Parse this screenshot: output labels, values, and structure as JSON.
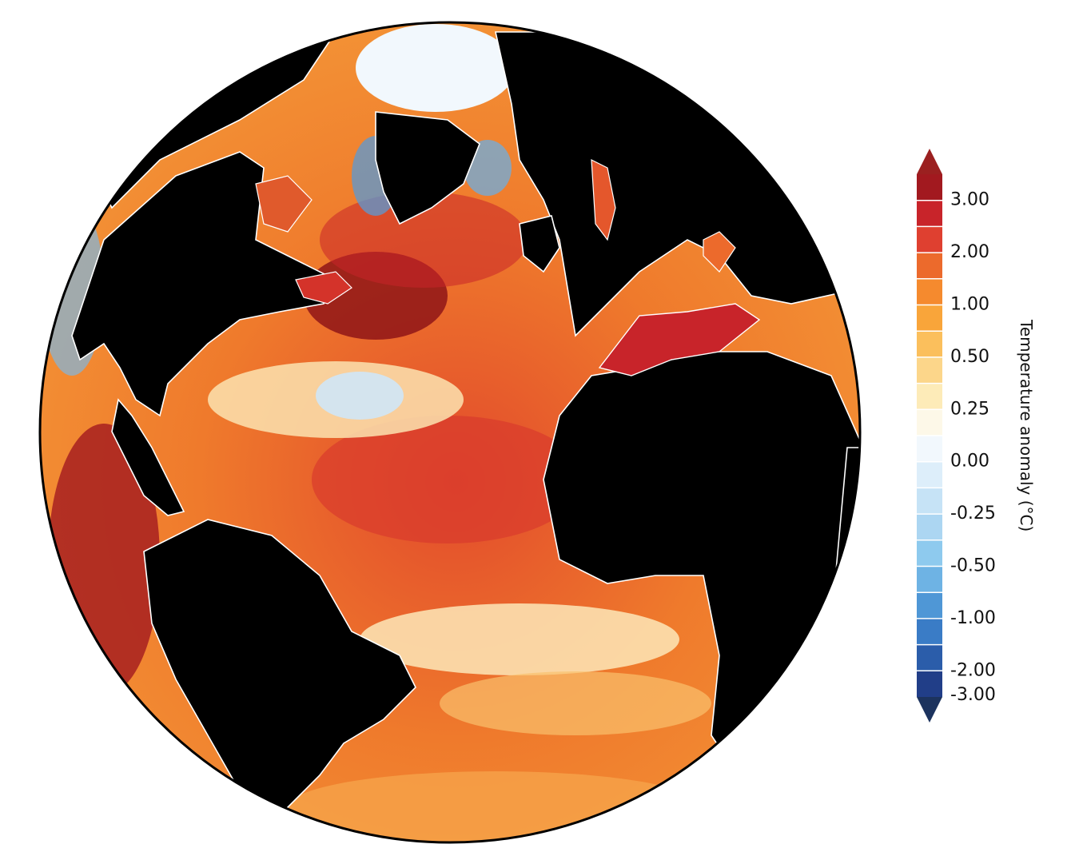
{
  "map": {
    "projection": "orthographic globe",
    "land_color": "#000000",
    "coastline_color": "#ffffff",
    "outline_color": "#000000"
  },
  "colorbar": {
    "title": "Temperature anomaly (°C)",
    "extend": "both",
    "ticks": [
      "3.00",
      "2.00",
      "1.00",
      "0.50",
      "0.25",
      "0.00",
      "-0.25",
      "-0.50",
      "-1.00",
      "-2.00",
      "-3.00"
    ],
    "colors": [
      "#a2191f",
      "#c8242a",
      "#df4030",
      "#ec6a2c",
      "#f58a2e",
      "#f9a53a",
      "#fbbf5c",
      "#fcd68a",
      "#fdebb8",
      "#fdf8e8",
      "#f2f8fd",
      "#ddeefa",
      "#c6e3f6",
      "#acd6f2",
      "#8ecaee",
      "#6eb3e4",
      "#4f97d6",
      "#3a7cc6",
      "#2b5daa",
      "#213e88"
    ],
    "arrow_top_color": "#9b2020",
    "arrow_bottom_color": "#1c335e"
  }
}
